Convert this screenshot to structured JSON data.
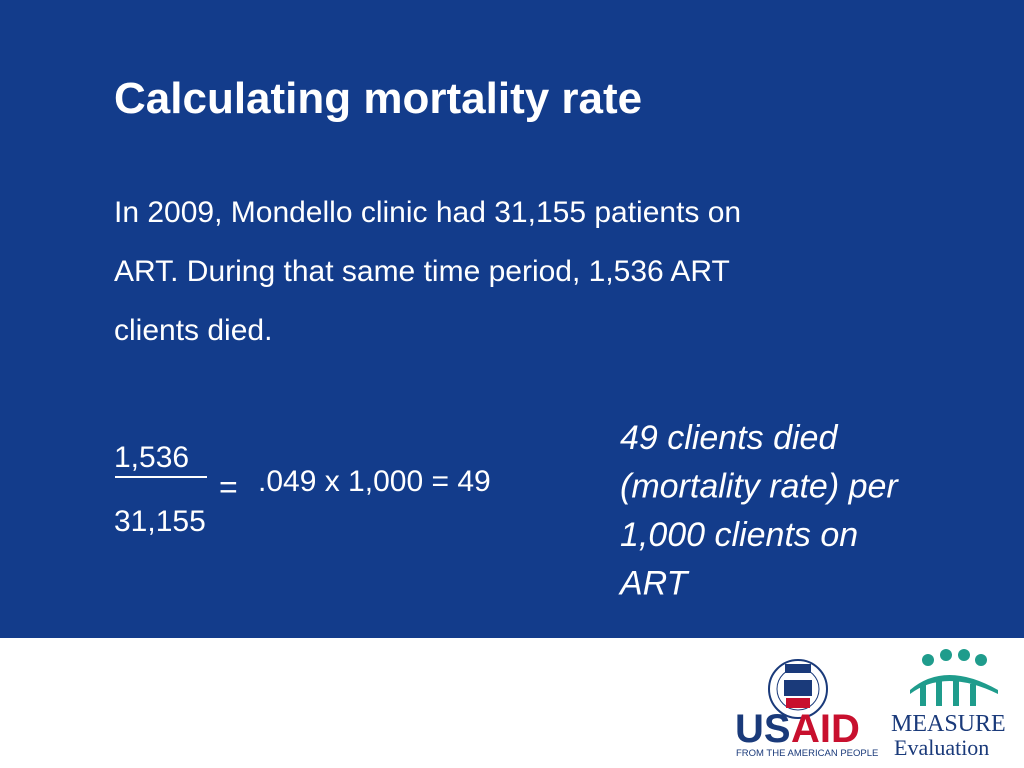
{
  "slide": {
    "title": "Calculating mortality rate",
    "paragraph_lines": [
      "In 2009, Mondello clinic had 31,155 patients on",
      "ART. During that same time period, 1,536 ART",
      "clients died."
    ],
    "formula": {
      "numerator": "1,536",
      "denominator": "31,155",
      "equals": "=",
      "result": ".049 x 1,000 = 49"
    },
    "conclusion_lines": [
      "49 clients died",
      "(mortality rate) per",
      "1,000 clients on",
      "ART"
    ]
  },
  "footer": {
    "usaid": {
      "parts": [
        "US",
        "AID"
      ],
      "tagline": "FROM THE AMERICAN PEOPLE"
    },
    "measure": {
      "name": "MEASURE",
      "sub": "Evaluation"
    }
  }
}
